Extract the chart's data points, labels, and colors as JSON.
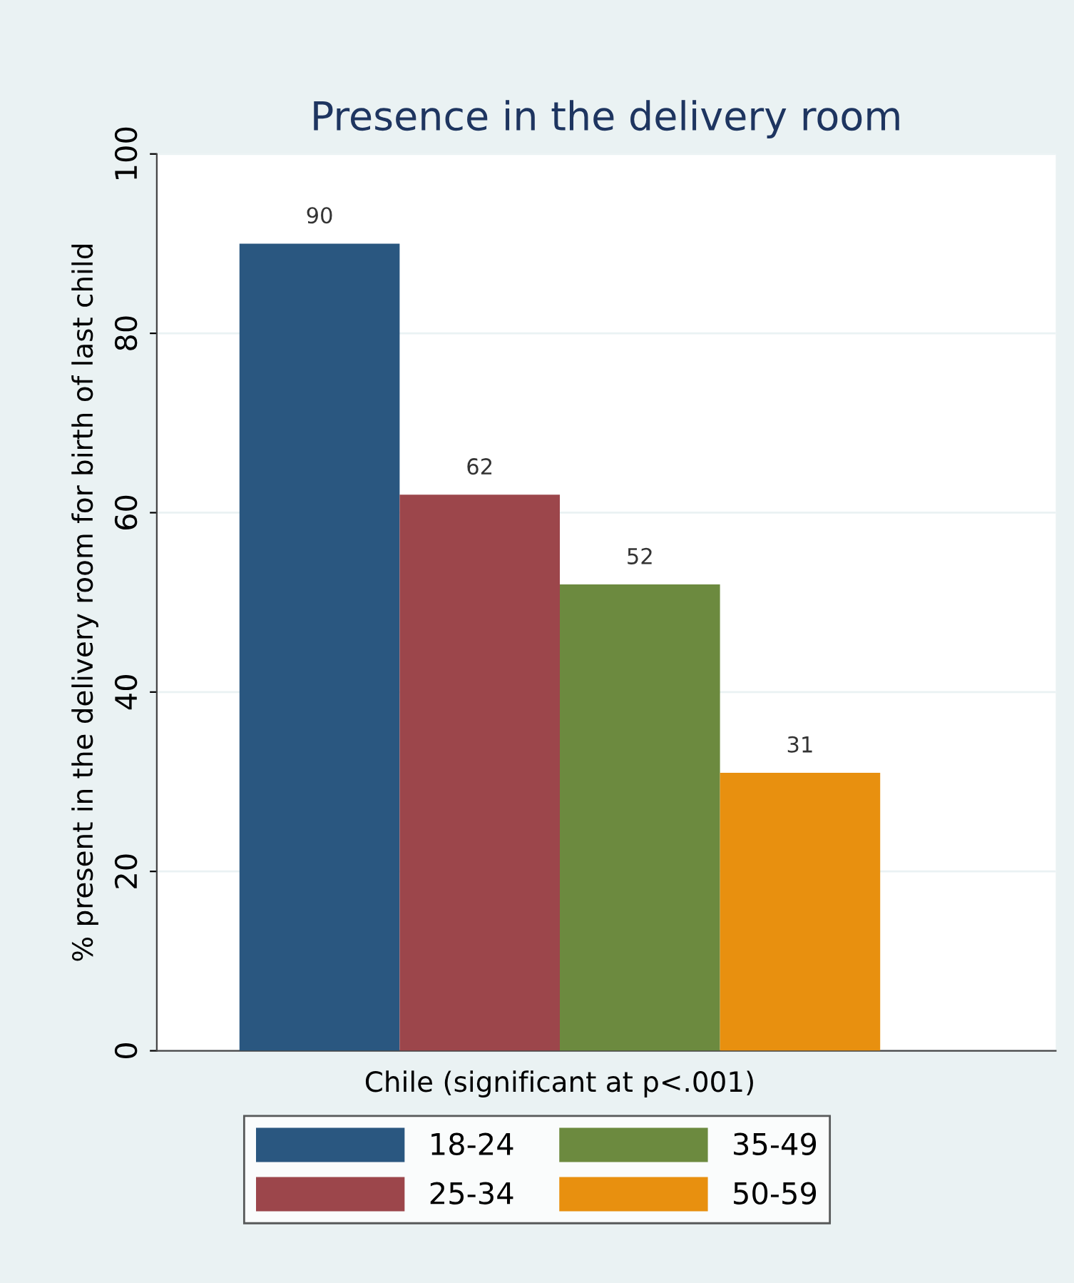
{
  "chart_data": {
    "type": "bar",
    "title": "Presence in the delivery room",
    "ylabel": "% present in the delivery room for birth of last child",
    "categories": [
      "Chile (significant at p<.001)"
    ],
    "series": [
      {
        "name": "18-24",
        "color": "#2a5780",
        "values": [
          90
        ]
      },
      {
        "name": "25-34",
        "color": "#9c464b",
        "values": [
          62
        ]
      },
      {
        "name": "35-49",
        "color": "#6c8a3f",
        "values": [
          52
        ]
      },
      {
        "name": "50-59",
        "color": "#e8900f",
        "values": [
          31
        ]
      }
    ],
    "ylim": [
      0,
      100
    ],
    "yticks": [
      0,
      20,
      40,
      60,
      80,
      100
    ],
    "grid": "y",
    "legend": "bottom",
    "data_labels": true
  }
}
